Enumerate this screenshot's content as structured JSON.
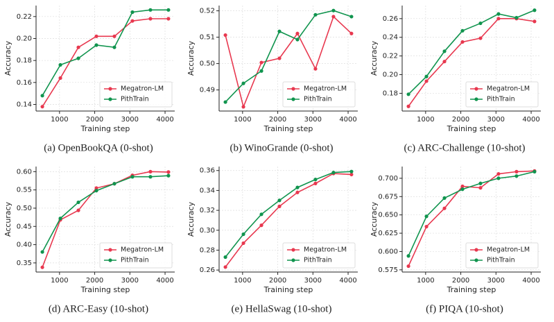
{
  "chart_data": [
    {
      "type": "line",
      "caption": "(a) OpenBookQA (0-shot)",
      "xlabel": "Training step",
      "ylabel": "Accuracy",
      "x": [
        512,
        1024,
        1536,
        2048,
        2560,
        3072,
        3584,
        4096
      ],
      "xlim": [
        333,
        4275
      ],
      "xticks": [
        1000,
        2000,
        3000,
        4000
      ],
      "ylim": [
        0.134,
        0.23
      ],
      "yticks": [
        0.14,
        0.16,
        0.18,
        {
          "value": 0.2,
          "label": "0.20"
        },
        0.22
      ],
      "grid": true,
      "legend": "lower right",
      "series": [
        {
          "name": "Megatron-LM",
          "color": "#e8384f",
          "values": [
            0.138,
            0.164,
            0.192,
            0.202,
            0.202,
            0.216,
            0.218,
            0.218
          ]
        },
        {
          "name": "PithTrain",
          "color": "#10944e",
          "values": [
            0.148,
            0.176,
            0.182,
            0.194,
            0.192,
            0.224,
            0.226,
            0.226
          ]
        }
      ]
    },
    {
      "type": "line",
      "caption": "(b) WinoGrande (0-shot)",
      "xlabel": "Training step",
      "ylabel": "Accuracy",
      "x": [
        512,
        1024,
        1536,
        2048,
        2560,
        3072,
        3584,
        4096
      ],
      "xlim": [
        333,
        4275
      ],
      "xticks": [
        1000,
        2000,
        3000,
        4000
      ],
      "ylim": [
        0.482,
        0.522
      ],
      "yticks": [
        0.49,
        {
          "value": 0.5,
          "label": "0.50"
        },
        0.51,
        0.52
      ],
      "grid": true,
      "legend": "lower right",
      "series": [
        {
          "name": "Megatron-LM",
          "color": "#e8384f",
          "values": [
            0.5108,
            0.4836,
            0.5004,
            0.502,
            0.5114,
            0.498,
            0.5178,
            0.5114
          ]
        },
        {
          "name": "PithTrain",
          "color": "#10944e",
          "values": [
            0.4854,
            0.4925,
            0.4972,
            0.5122,
            0.5091,
            0.5185,
            0.5201,
            0.5178
          ]
        }
      ]
    },
    {
      "type": "line",
      "caption": "(c) ARC-Challenge (10-shot)",
      "xlabel": "Training step",
      "ylabel": "Accuracy",
      "x": [
        512,
        1024,
        1536,
        2048,
        2560,
        3072,
        3584,
        4096
      ],
      "xlim": [
        333,
        4275
      ],
      "xticks": [
        1000,
        2000,
        3000,
        4000
      ],
      "ylim": [
        0.161,
        0.274
      ],
      "yticks": [
        0.18,
        {
          "value": 0.2,
          "label": "0.20"
        },
        0.22,
        0.24,
        0.26
      ],
      "grid": true,
      "legend": "lower right",
      "series": [
        {
          "name": "Megatron-LM",
          "color": "#e8384f",
          "values": [
            0.166,
            0.193,
            0.214,
            0.235,
            0.239,
            0.26,
            0.26,
            0.257
          ]
        },
        {
          "name": "PithTrain",
          "color": "#10944e",
          "values": [
            0.179,
            0.198,
            0.225,
            0.247,
            0.255,
            0.265,
            0.261,
            0.269
          ]
        }
      ]
    },
    {
      "type": "line",
      "caption": "(d) ARC-Easy (10-shot)",
      "xlabel": "Training step",
      "ylabel": "Accuracy",
      "x": [
        512,
        1024,
        1536,
        2048,
        2560,
        3072,
        3584,
        4096
      ],
      "xlim": [
        333,
        4275
      ],
      "xticks": [
        1000,
        2000,
        3000,
        4000
      ],
      "ylim": [
        0.325,
        0.614
      ],
      "yticks": [
        0.35,
        {
          "value": 0.4,
          "label": "0.40"
        },
        0.45,
        {
          "value": 0.5,
          "label": "0.50"
        },
        0.55,
        {
          "value": 0.6,
          "label": "0.60"
        }
      ],
      "grid": true,
      "legend": "lower right",
      "series": [
        {
          "name": "Megatron-LM",
          "color": "#e8384f",
          "values": [
            0.338,
            0.468,
            0.494,
            0.555,
            0.567,
            0.59,
            0.6,
            0.599
          ]
        },
        {
          "name": "PithTrain",
          "color": "#10944e",
          "values": [
            0.38,
            0.472,
            0.516,
            0.548,
            0.567,
            0.586,
            0.586,
            0.589
          ]
        }
      ]
    },
    {
      "type": "line",
      "caption": "(e) HellaSwag (10-shot)",
      "xlabel": "Training step",
      "ylabel": "Accuracy",
      "x": [
        512,
        1024,
        1536,
        2048,
        2560,
        3072,
        3584,
        4096
      ],
      "xlim": [
        333,
        4275
      ],
      "xticks": [
        1000,
        2000,
        3000,
        4000
      ],
      "ylim": [
        0.258,
        0.364
      ],
      "yticks": [
        0.26,
        0.28,
        {
          "value": 0.3,
          "label": "0.30"
        },
        0.32,
        0.34,
        0.36
      ],
      "grid": true,
      "legend": "lower right",
      "series": [
        {
          "name": "Megatron-LM",
          "color": "#e8384f",
          "values": [
            0.263,
            0.287,
            0.305,
            0.324,
            0.338,
            0.347,
            0.357,
            0.356
          ]
        },
        {
          "name": "PithTrain",
          "color": "#10944e",
          "values": [
            0.273,
            0.296,
            0.316,
            0.33,
            0.343,
            0.351,
            0.358,
            0.359
          ]
        }
      ]
    },
    {
      "type": "line",
      "caption": "(f) PIQA (10-shot)",
      "xlabel": "Training step",
      "ylabel": "Accuracy",
      "x": [
        512,
        1024,
        1536,
        2048,
        2560,
        3072,
        3584,
        4096
      ],
      "xlim": [
        333,
        4275
      ],
      "xticks": [
        1000,
        2000,
        3000,
        4000
      ],
      "ylim": [
        0.572,
        0.716
      ],
      "yticks": [
        0.575,
        {
          "value": 0.6,
          "label": "0.600"
        },
        0.625,
        {
          "value": 0.65,
          "label": "0.650"
        },
        0.675,
        {
          "value": 0.7,
          "label": "0.700"
        }
      ],
      "grid": true,
      "legend": "lower right",
      "series": [
        {
          "name": "Megatron-LM",
          "color": "#e8384f",
          "values": [
            0.58,
            0.634,
            0.659,
            0.689,
            0.687,
            0.706,
            0.709,
            0.71
          ]
        },
        {
          "name": "PithTrain",
          "color": "#10944e",
          "values": [
            0.594,
            0.648,
            0.673,
            0.685,
            0.693,
            0.7,
            0.703,
            0.709
          ]
        }
      ]
    }
  ]
}
